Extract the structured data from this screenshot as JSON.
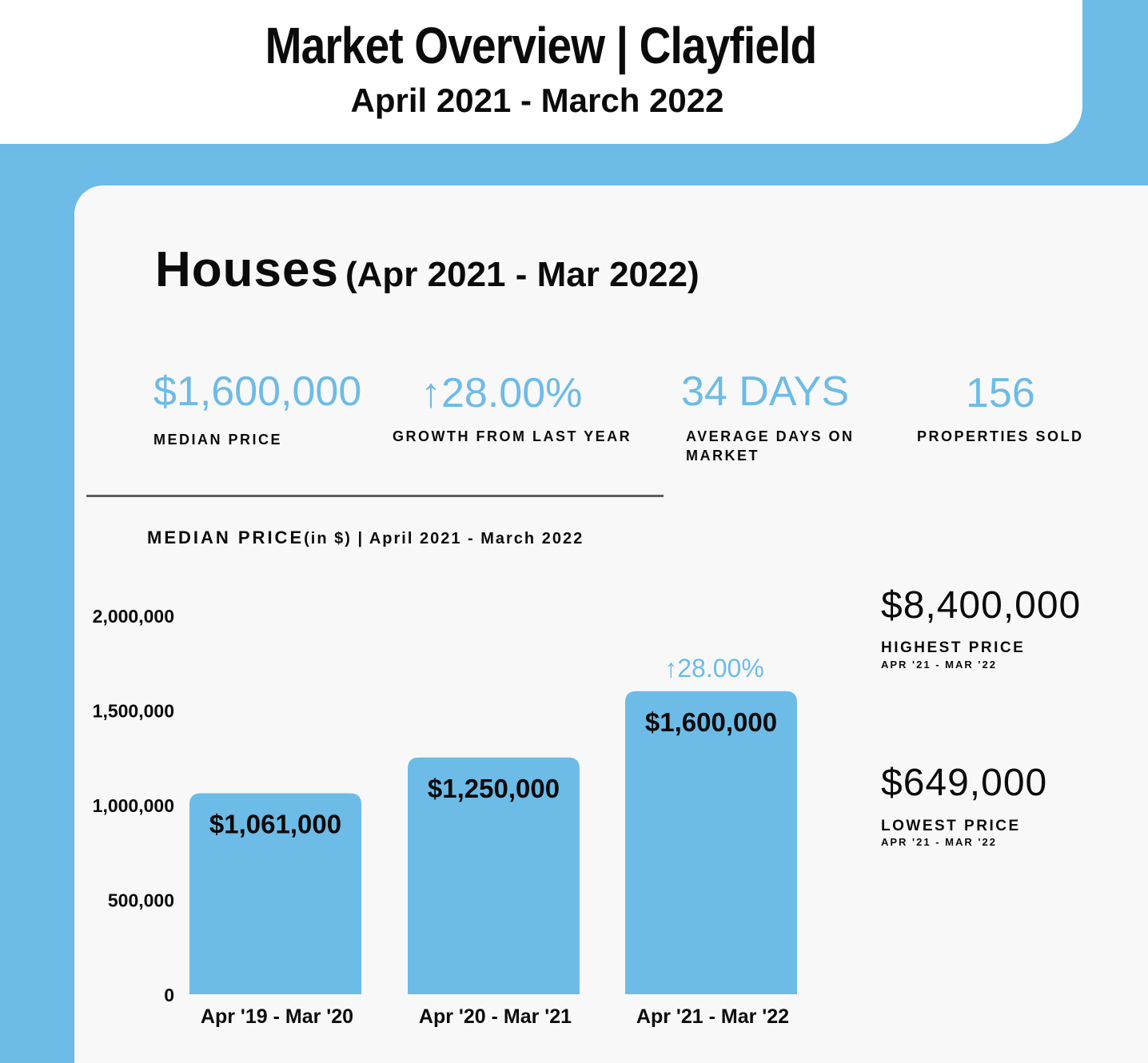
{
  "header": {
    "title": "Market Overview | Clayfield",
    "subtitle": "April 2021 - March 2022"
  },
  "section": {
    "title": "Houses",
    "period": "(Apr 2021 - Mar 2022)"
  },
  "stats": [
    {
      "value": "$1,600,000",
      "label": "MEDIAN PRICE"
    },
    {
      "arrow": "↑",
      "value": "28.00%",
      "label": "GROWTH FROM LAST YEAR"
    },
    {
      "value": "34 DAYS",
      "label_line1": "AVERAGE DAYS ON",
      "label_line2": "MARKET"
    },
    {
      "value": "156",
      "label": "PROPERTIES SOLD"
    }
  ],
  "chart_caption": {
    "main": "MEDIAN PRICE",
    "sub": "(in $) | April 2021 - March 2022"
  },
  "colors": {
    "accent": "#6dbbe7",
    "bar": "#6dbbe7",
    "text": "#0b0b0b",
    "panel": "#f8f8f8"
  },
  "chart_data": {
    "type": "bar",
    "title": "MEDIAN PRICE (in $) | April 2021 - March 2022",
    "categories": [
      "Apr '19 - Mar '20",
      "Apr '20 - Mar '21",
      "Apr '21 - Mar '22"
    ],
    "values": [
      1061000,
      1250000,
      1600000
    ],
    "data_labels": [
      "$1,061,000",
      "$1,250,000",
      "$1,600,000"
    ],
    "ylim": [
      0,
      2000000
    ],
    "yticks": [
      0,
      500000,
      1000000,
      1500000,
      2000000
    ],
    "ytick_labels": [
      "0",
      "500,000",
      "1,000,000",
      "1,500,000",
      "2,000,000"
    ],
    "annotation": {
      "category_index": 2,
      "text": "↑28.00%"
    },
    "grid": false,
    "legend": "none"
  },
  "side_stats": {
    "highest": {
      "value": "$8,400,000",
      "label": "HIGHEST PRICE",
      "sub": "APR '21 - MAR '22"
    },
    "lowest": {
      "value": "$649,000",
      "label": "LOWEST PRICE",
      "sub": "APR '21 - MAR '22"
    }
  }
}
